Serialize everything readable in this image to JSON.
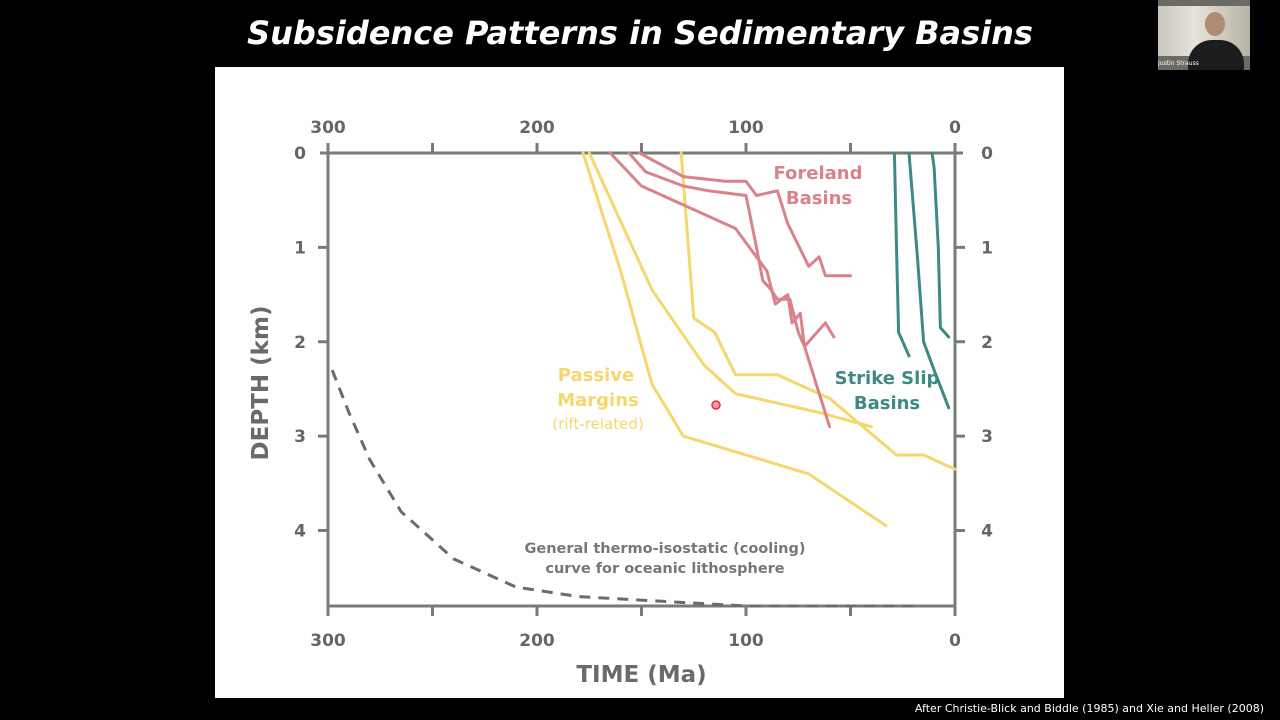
{
  "slide": {
    "title": "Subsidence Patterns in Sedimentary Basins",
    "citation": "After Christie-Blick and Biddle (1985) and Xie and Heller (2008)"
  },
  "webcam": {
    "name": "Justin Strauss"
  },
  "colors": {
    "axis": "#7a7a7a",
    "passive": "#f5d76e",
    "foreland": "#d9828c",
    "strike_slip": "#3d8a84",
    "thermal": "#6b6b6b"
  },
  "chart_data": {
    "type": "line",
    "xlabel": "TIME (Ma)",
    "ylabel": "DEPTH (km)",
    "xlim": [
      300,
      0
    ],
    "ylim": [
      0,
      4.8
    ],
    "x_ticks": [
      300,
      200,
      100,
      0
    ],
    "x_tick_labels": [
      "300",
      "200",
      "100",
      "0"
    ],
    "y_ticks": [
      0,
      1,
      2,
      3,
      4
    ],
    "y_tick_labels": [
      "0",
      "1",
      "2",
      "3",
      "4"
    ],
    "annotations": {
      "passive_1": "Passive",
      "passive_2": "Margins",
      "passive_3": "(rift-related)",
      "foreland_1": "Foreland",
      "foreland_2": "Basins",
      "strike_1": "Strike Slip",
      "strike_2": "Basins",
      "thermal_1": "General thermo-isostatic (cooling)",
      "thermal_2": "curve for oceanic lithosphere"
    },
    "series": [
      {
        "group": "passive",
        "points": [
          [
            178,
            0
          ],
          [
            160,
            1.25
          ],
          [
            145,
            2.45
          ],
          [
            130,
            3.0
          ],
          [
            70,
            3.4
          ],
          [
            33,
            3.95
          ]
        ]
      },
      {
        "group": "passive",
        "points": [
          [
            175,
            0
          ],
          [
            145,
            1.45
          ],
          [
            120,
            2.25
          ],
          [
            105,
            2.55
          ],
          [
            65,
            2.75
          ],
          [
            40,
            2.9
          ]
        ]
      },
      {
        "group": "passive",
        "points": [
          [
            131,
            0
          ],
          [
            125,
            1.75
          ],
          [
            115,
            1.9
          ],
          [
            105,
            2.35
          ],
          [
            85,
            2.35
          ],
          [
            60,
            2.6
          ],
          [
            28,
            3.2
          ],
          [
            15,
            3.2
          ],
          [
            0,
            3.35
          ]
        ]
      },
      {
        "group": "foreland",
        "points": [
          [
            151,
            0
          ],
          [
            130,
            0.25
          ],
          [
            110,
            0.3
          ],
          [
            100,
            0.3
          ],
          [
            95,
            0.45
          ],
          [
            85,
            0.4
          ],
          [
            80,
            0.75
          ],
          [
            70,
            1.2
          ],
          [
            65,
            1.1
          ],
          [
            62,
            1.3
          ],
          [
            50,
            1.3
          ]
        ]
      },
      {
        "group": "foreland",
        "points": [
          [
            156,
            0
          ],
          [
            148,
            0.2
          ],
          [
            130,
            0.35
          ],
          [
            118,
            0.4
          ],
          [
            100,
            0.45
          ],
          [
            95,
            1.0
          ],
          [
            92,
            1.35
          ],
          [
            88,
            1.45
          ],
          [
            85,
            1.55
          ],
          [
            79,
            1.55
          ],
          [
            75,
            1.9
          ],
          [
            72,
            2.05
          ],
          [
            60,
            2.9
          ]
        ]
      },
      {
        "group": "foreland",
        "points": [
          [
            165,
            0
          ],
          [
            150,
            0.35
          ],
          [
            125,
            0.6
          ],
          [
            105,
            0.8
          ],
          [
            90,
            1.25
          ],
          [
            86,
            1.6
          ],
          [
            80,
            1.5
          ],
          [
            78,
            1.8
          ],
          [
            74,
            1.7
          ],
          [
            72,
            2.05
          ],
          [
            62,
            1.8
          ],
          [
            58,
            1.95
          ]
        ]
      },
      {
        "group": "strike_slip",
        "points": [
          [
            29,
            0
          ],
          [
            28,
            1.0
          ],
          [
            27,
            1.9
          ],
          [
            22,
            2.15
          ]
        ]
      },
      {
        "group": "strike_slip",
        "points": [
          [
            22,
            0
          ],
          [
            18,
            1.1
          ],
          [
            15,
            2.0
          ],
          [
            10,
            2.3
          ],
          [
            3,
            2.7
          ]
        ]
      },
      {
        "group": "strike_slip",
        "points": [
          [
            11,
            0
          ],
          [
            10,
            0.15
          ],
          [
            8,
            1.0
          ],
          [
            7,
            1.85
          ],
          [
            3,
            1.95
          ]
        ]
      }
    ],
    "thermal_curve": {
      "points": [
        [
          298,
          2.3
        ],
        [
          290,
          2.75
        ],
        [
          280,
          3.25
        ],
        [
          265,
          3.8
        ],
        [
          240,
          4.3
        ],
        [
          210,
          4.6
        ],
        [
          180,
          4.7
        ],
        [
          140,
          4.75
        ],
        [
          100,
          4.8
        ],
        [
          16,
          4.8
        ]
      ]
    }
  }
}
